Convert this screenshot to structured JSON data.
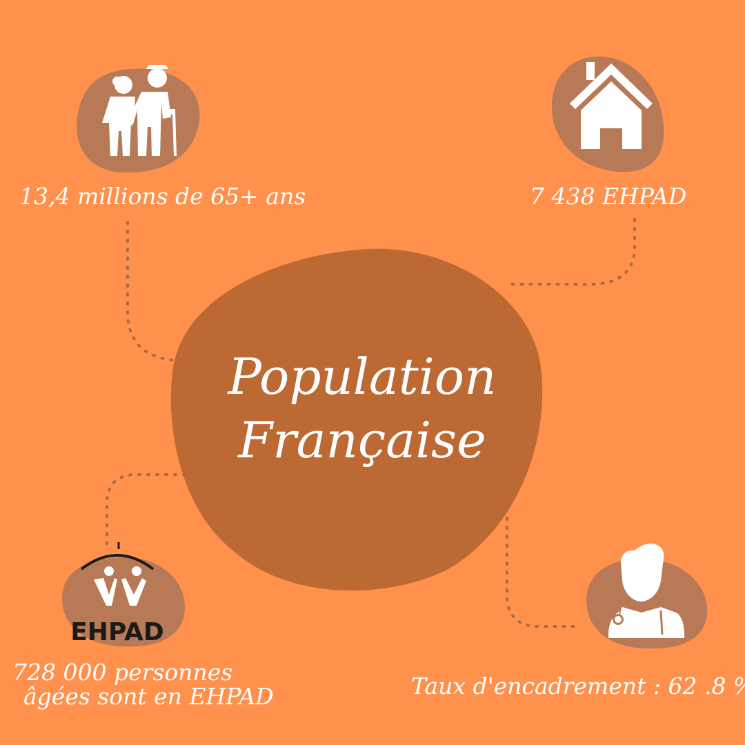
{
  "colors": {
    "background": "#FF914D",
    "center_blob": "#BC6934",
    "icon_blob": "#B87A56",
    "icon_fill": "#ffffff",
    "connector": "#A66A48",
    "text": "#ffffff"
  },
  "title": {
    "line1": "Population",
    "line2": "Française"
  },
  "stats": {
    "seniors": {
      "text": "13,4 millions de 65+ ans",
      "icon": "elderly-couple-icon"
    },
    "ehpad_count": {
      "text": "7 438 EHPAD",
      "icon": "house-icon"
    },
    "residents": {
      "line1": "728 000  personnes",
      "line2": "âgées sont en EHPAD",
      "icon": "ehpad-logo",
      "logo_text": "EHPAD"
    },
    "staffing": {
      "text": "Taux d'encadrement : 62 .8 %",
      "icon": "doctor-icon"
    }
  }
}
